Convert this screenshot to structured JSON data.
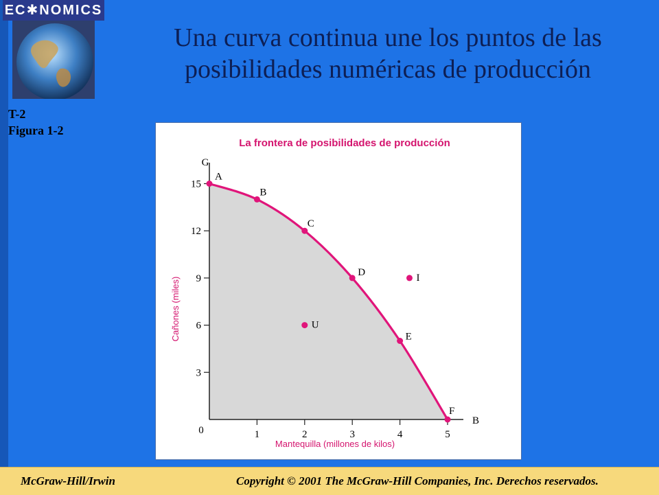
{
  "header": {
    "logo_text": "EC✱NOMICS",
    "title_line1": "Una curva continua une los puntos de las",
    "title_line2": "posibilidades numéricas de producción",
    "slide_id_line1": "T-2",
    "slide_id_line2": "Figura 1-2"
  },
  "colors": {
    "background": "#1e73e6",
    "title": "#0d1f55",
    "curve": "#e0157a",
    "fill": "#d8d8d8",
    "footer": "#f7d97c"
  },
  "chart_data": {
    "type": "line",
    "title": "La frontera de posibilidades de producción",
    "xlabel": "Mantequilla (millones de kilos)",
    "ylabel": "Cañones (miles)",
    "x_axis_name": "B",
    "y_axis_name": "G",
    "xlim": [
      0,
      5.5
    ],
    "ylim": [
      0,
      16
    ],
    "x_ticks": [
      0,
      1,
      2,
      3,
      4,
      5
    ],
    "y_ticks": [
      3,
      6,
      9,
      12,
      15
    ],
    "origin_label": "0",
    "series": [
      {
        "points": [
          {
            "label": "A",
            "x": 0,
            "y": 15
          },
          {
            "label": "B",
            "x": 1,
            "y": 14
          },
          {
            "label": "C",
            "x": 2,
            "y": 12
          },
          {
            "label": "D",
            "x": 3,
            "y": 9
          },
          {
            "label": "E",
            "x": 4,
            "y": 5
          },
          {
            "label": "F",
            "x": 5,
            "y": 0
          }
        ]
      }
    ],
    "extra_points": [
      {
        "label": "U",
        "x": 2,
        "y": 6
      },
      {
        "label": "I",
        "x": 4.2,
        "y": 9
      }
    ]
  },
  "footer": {
    "left": "McGraw-Hill/Irwin",
    "right": "Copyright © 2001 The McGraw-Hill Companies, Inc. Derechos reservados."
  }
}
